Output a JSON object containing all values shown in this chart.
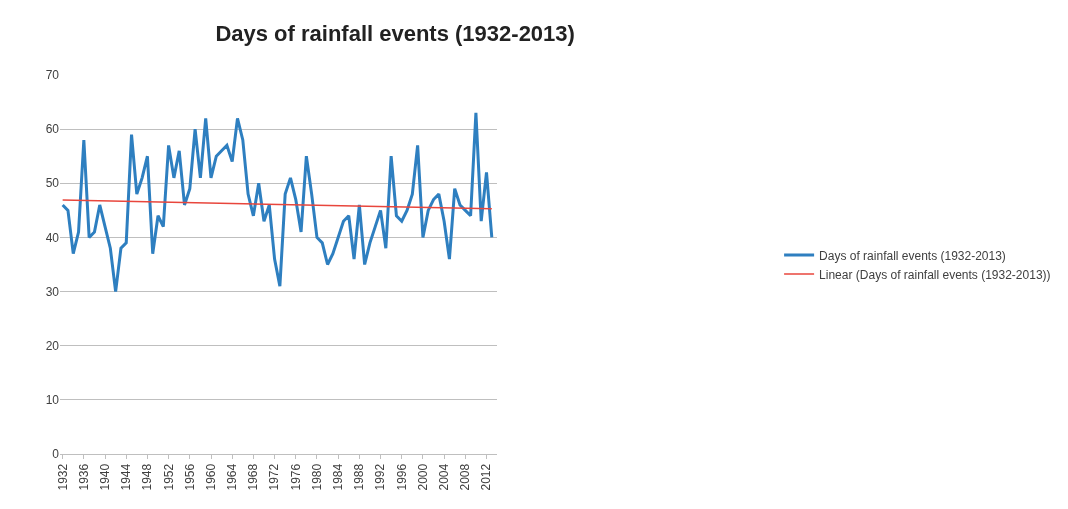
{
  "chart_data": {
    "type": "line",
    "title": "Days of rainfall events (1932-2013)",
    "x": [
      1932,
      1933,
      1934,
      1935,
      1936,
      1937,
      1938,
      1939,
      1940,
      1941,
      1942,
      1943,
      1944,
      1945,
      1946,
      1947,
      1948,
      1949,
      1950,
      1951,
      1952,
      1953,
      1954,
      1955,
      1956,
      1957,
      1958,
      1959,
      1960,
      1961,
      1962,
      1963,
      1964,
      1965,
      1966,
      1967,
      1968,
      1969,
      1970,
      1971,
      1972,
      1973,
      1974,
      1975,
      1976,
      1977,
      1978,
      1979,
      1980,
      1981,
      1982,
      1983,
      1984,
      1985,
      1986,
      1987,
      1988,
      1989,
      1990,
      1991,
      1992,
      1993,
      1994,
      1995,
      1996,
      1997,
      1998,
      1999,
      2000,
      2001,
      2002,
      2003,
      2004,
      2005,
      2006,
      2007,
      2008,
      2009,
      2010,
      2011,
      2012,
      2013
    ],
    "series": [
      {
        "name": "Days of rainfall events (1932-2013)",
        "color": "#2e7fc0",
        "values": [
          46,
          45,
          37,
          41,
          58,
          40,
          41,
          46,
          42,
          38,
          30,
          38,
          39,
          59,
          48,
          51,
          55,
          37,
          44,
          42,
          57,
          51,
          56,
          46,
          49,
          60,
          51,
          62,
          51,
          55,
          56,
          57,
          54,
          62,
          58,
          48,
          44,
          50,
          43,
          46,
          36,
          31,
          48,
          51,
          47,
          41,
          55,
          48,
          40,
          39,
          35,
          37,
          40,
          43,
          44,
          36,
          46,
          35,
          39,
          42,
          45,
          38,
          55,
          44,
          43,
          45,
          48,
          57,
          40,
          45,
          47,
          48,
          43,
          36,
          49,
          46,
          45,
          44,
          63,
          43,
          52,
          40
        ]
      },
      {
        "name": "Linear (Days of rainfall events (1932-2013))",
        "type": "line",
        "color": "#e8463c",
        "x": [
          1932,
          2013
        ],
        "values": [
          46.9,
          45.3
        ]
      }
    ],
    "xlim": [
      1931.5,
      2014
    ],
    "xticks": [
      1932,
      1936,
      1940,
      1944,
      1948,
      1952,
      1956,
      1960,
      1964,
      1968,
      1972,
      1976,
      1980,
      1984,
      1988,
      1992,
      1996,
      2000,
      2004,
      2008,
      2012
    ],
    "ylim": [
      0,
      70
    ],
    "yticks": [
      0,
      10,
      20,
      30,
      40,
      50,
      60,
      70
    ],
    "grid": "y",
    "legend": "right",
    "marker": "none",
    "line_style": "solid"
  }
}
